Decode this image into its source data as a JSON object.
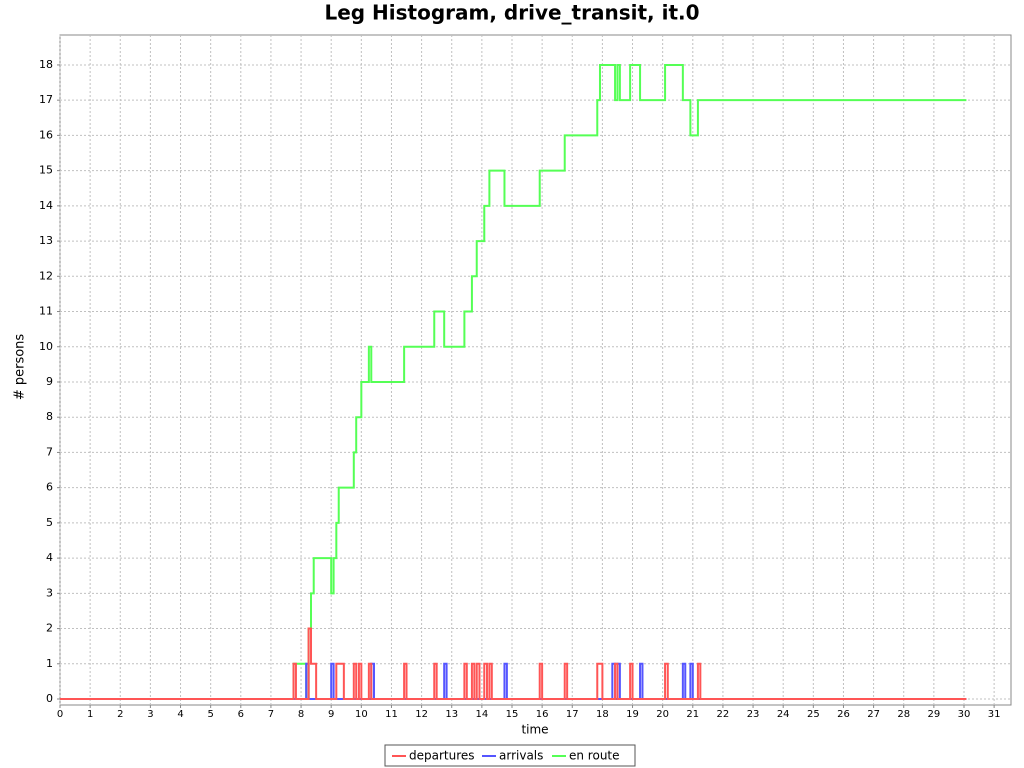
{
  "chart_data": {
    "type": "step",
    "title": "Leg Histogram, drive_transit, it.0",
    "x_label": "time",
    "y_label": "# persons",
    "xlim": [
      0,
      31.56
    ],
    "ylim": [
      -0.17,
      18.85
    ],
    "xticks": [
      0,
      1,
      2,
      3,
      4,
      5,
      6,
      7,
      8,
      9,
      10,
      11,
      12,
      13,
      14,
      15,
      16,
      17,
      18,
      19,
      20,
      21,
      22,
      23,
      24,
      25,
      26,
      27,
      28,
      29,
      30,
      31
    ],
    "yticks": [
      0,
      1,
      2,
      3,
      4,
      5,
      6,
      7,
      8,
      9,
      10,
      11,
      12,
      13,
      14,
      15,
      16,
      17,
      18
    ],
    "grid": true,
    "legend": "bottom",
    "series": [
      {
        "name": "departures",
        "color": "#ff5555",
        "x": [
          0,
          7.75,
          7.83,
          8.25,
          8.33,
          8.5,
          9.17,
          9.42,
          9.75,
          9.83,
          9.92,
          10.0,
          10.25,
          10.33,
          11.42,
          11.5,
          12.42,
          12.5,
          13.42,
          13.5,
          13.67,
          13.75,
          13.83,
          13.92,
          14.08,
          14.17,
          14.25,
          14.33,
          15.92,
          16.0,
          16.75,
          16.83,
          17.83,
          18.0,
          18.42,
          18.5,
          18.92,
          19.0,
          20.08,
          20.17,
          21.17,
          21.25,
          30.08
        ],
        "values": [
          0,
          1,
          0,
          2,
          1,
          0,
          1,
          0,
          1,
          0,
          1,
          0,
          1,
          0,
          1,
          0,
          1,
          0,
          1,
          0,
          1,
          0,
          1,
          0,
          1,
          0,
          1,
          0,
          1,
          0,
          1,
          0,
          1,
          0,
          1,
          0,
          1,
          0,
          1,
          0,
          1,
          0,
          0
        ]
      },
      {
        "name": "arrivals",
        "color": "#5555ff",
        "x": [
          0,
          8.17,
          8.25,
          9.0,
          9.08,
          10.33,
          10.42,
          12.75,
          12.83,
          14.75,
          14.83,
          18.33,
          18.42,
          18.5,
          18.58,
          19.25,
          19.33,
          20.67,
          20.75,
          20.92,
          21.0,
          30.08
        ],
        "values": [
          0,
          1,
          0,
          1,
          0,
          1,
          0,
          1,
          0,
          1,
          0,
          1,
          0,
          1,
          0,
          1,
          0,
          1,
          0,
          1,
          0,
          0
        ]
      },
      {
        "name": "en route",
        "color": "#55ff55",
        "x": [
          0,
          7.75,
          8.17,
          8.25,
          8.33,
          8.42,
          9.0,
          9.08,
          9.17,
          9.25,
          9.75,
          9.83,
          10.0,
          10.25,
          10.33,
          11.42,
          12.42,
          12.75,
          13.42,
          13.67,
          13.83,
          14.08,
          14.25,
          14.75,
          15.92,
          16.75,
          17.83,
          17.92,
          18.42,
          18.5,
          18.58,
          18.92,
          19.25,
          20.08,
          20.67,
          20.92,
          21.17,
          30.08
        ],
        "values": [
          0,
          1,
          0,
          2,
          3,
          4,
          3,
          4,
          5,
          6,
          7,
          8,
          9,
          10,
          9,
          10,
          11,
          10,
          11,
          12,
          13,
          14,
          15,
          14,
          15,
          16,
          17,
          18,
          17,
          18,
          17,
          18,
          17,
          18,
          17,
          16,
          17,
          17
        ]
      }
    ]
  }
}
